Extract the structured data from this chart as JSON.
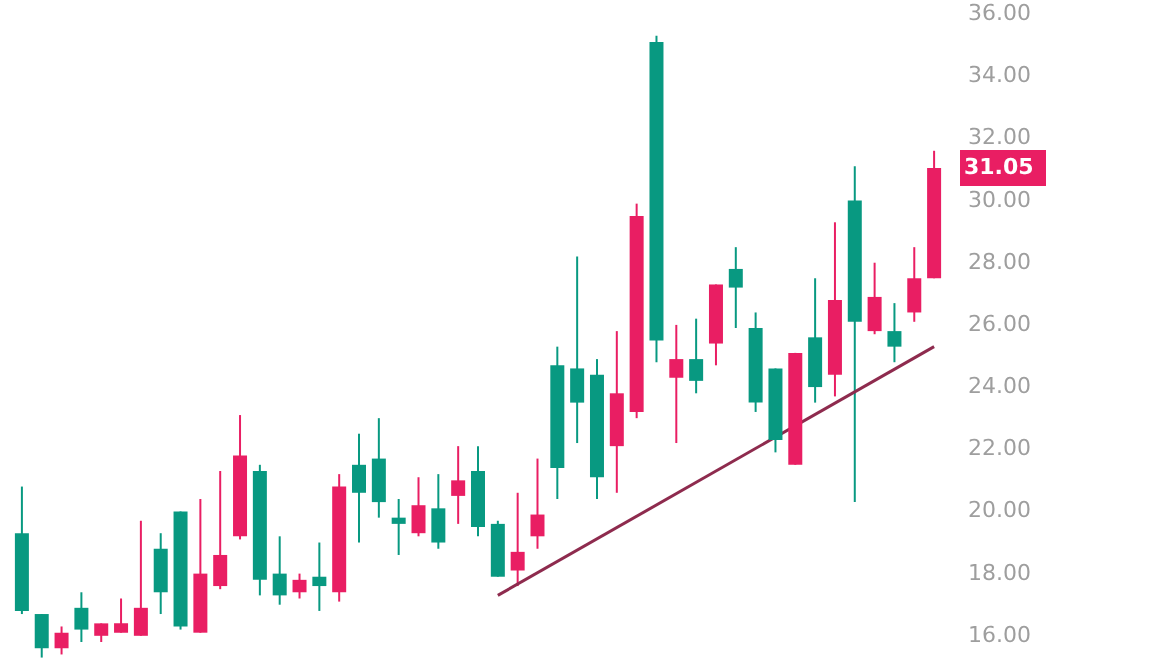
{
  "chart_data": {
    "type": "candlestick",
    "categories": [
      null,
      null,
      null,
      null,
      null,
      null,
      null,
      null,
      null,
      null,
      null,
      null,
      null,
      null,
      null,
      null,
      null,
      null,
      null,
      null,
      null,
      null,
      null,
      null,
      null,
      null,
      null,
      null,
      null,
      null,
      null,
      null,
      null,
      null,
      null,
      null,
      null,
      null,
      null,
      null,
      null,
      null,
      null,
      null,
      null,
      null,
      null
    ],
    "ohlc": [
      [
        19.3,
        20.8,
        16.7,
        16.8
      ],
      [
        16.7,
        16.7,
        15.3,
        15.6
      ],
      [
        15.6,
        16.3,
        15.4,
        16.1
      ],
      [
        16.9,
        17.4,
        15.8,
        16.2
      ],
      [
        16.0,
        16.4,
        15.8,
        16.4
      ],
      [
        16.1,
        17.2,
        16.1,
        16.4
      ],
      [
        16.0,
        19.7,
        16.0,
        16.9
      ],
      [
        18.8,
        19.3,
        16.7,
        17.4
      ],
      [
        20.0,
        20.0,
        16.2,
        16.3
      ],
      [
        16.1,
        20.4,
        16.1,
        18.0
      ],
      [
        17.6,
        21.3,
        17.5,
        18.6
      ],
      [
        19.2,
        23.1,
        19.1,
        21.8
      ],
      [
        21.3,
        21.5,
        17.3,
        17.8
      ],
      [
        18.0,
        19.2,
        17.0,
        17.3
      ],
      [
        17.4,
        18.0,
        17.2,
        17.8
      ],
      [
        17.9,
        19.0,
        16.8,
        17.6
      ],
      [
        17.4,
        21.2,
        17.1,
        20.8
      ],
      [
        21.5,
        22.5,
        19.0,
        20.6
      ],
      [
        21.7,
        23.0,
        19.8,
        20.3
      ],
      [
        19.8,
        20.4,
        18.6,
        19.6
      ],
      [
        19.3,
        21.1,
        19.2,
        20.2
      ],
      [
        20.1,
        21.2,
        18.8,
        19.0
      ],
      [
        20.5,
        22.1,
        19.6,
        21.0
      ],
      [
        21.3,
        22.1,
        19.2,
        19.5
      ],
      [
        19.6,
        19.7,
        17.9,
        17.9
      ],
      [
        18.1,
        20.6,
        17.6,
        18.7
      ],
      [
        19.2,
        21.7,
        18.8,
        19.9
      ],
      [
        24.7,
        25.3,
        20.4,
        21.4
      ],
      [
        24.6,
        28.2,
        22.2,
        23.5
      ],
      [
        24.4,
        24.9,
        20.4,
        21.1
      ],
      [
        22.1,
        25.8,
        20.6,
        23.8
      ],
      [
        23.2,
        29.9,
        23.0,
        29.5
      ],
      [
        35.1,
        35.3,
        24.8,
        25.5
      ],
      [
        24.3,
        26.0,
        22.2,
        24.9
      ],
      [
        24.9,
        26.2,
        23.8,
        24.2
      ],
      [
        25.4,
        27.3,
        24.7,
        27.3
      ],
      [
        27.8,
        28.5,
        25.9,
        27.2
      ],
      [
        25.9,
        26.4,
        23.2,
        23.5
      ],
      [
        24.6,
        24.6,
        21.9,
        22.3
      ],
      [
        21.5,
        25.1,
        21.5,
        25.1
      ],
      [
        25.6,
        27.5,
        23.5,
        24.0
      ],
      [
        24.4,
        29.3,
        23.7,
        26.8
      ],
      [
        30.0,
        31.1,
        20.3,
        26.1
      ],
      [
        25.8,
        28.0,
        25.7,
        26.9
      ],
      [
        25.8,
        26.7,
        24.8,
        25.3
      ],
      [
        26.4,
        28.5,
        26.1,
        27.5
      ],
      [
        27.5,
        31.6,
        27.5,
        31.05
      ]
    ],
    "colors": [
      "#089981",
      "#089981",
      "#e91e63",
      "#089981",
      "#e91e63",
      "#e91e63",
      "#e91e63",
      "#089981",
      "#089981",
      "#e91e63",
      "#e91e63",
      "#e91e63",
      "#089981",
      "#089981",
      "#e91e63",
      "#089981",
      "#e91e63",
      "#089981",
      "#089981",
      "#089981",
      "#e91e63",
      "#089981",
      "#e91e63",
      "#089981",
      "#089981",
      "#e91e63",
      "#e91e63",
      "#089981",
      "#089981",
      "#089981",
      "#e91e63",
      "#e91e63",
      "#089981",
      "#e91e63",
      "#089981",
      "#e91e63",
      "#089981",
      "#089981",
      "#089981",
      "#e91e63",
      "#089981",
      "#e91e63",
      "#089981",
      "#e91e63",
      "#089981",
      "#e91e63",
      "#e91e63"
    ],
    "series": [
      {
        "type": "line",
        "values": [
          null,
          null,
          null,
          null,
          null,
          null,
          null,
          null,
          null,
          null,
          null,
          null,
          null,
          null,
          null,
          null,
          null,
          null,
          null,
          null,
          null,
          null,
          null,
          null,
          17.3,
          null,
          null,
          null,
          null,
          null,
          null,
          null,
          null,
          null,
          null,
          null,
          null,
          null,
          null,
          null,
          null,
          null,
          null,
          null,
          null,
          null,
          25.3
        ],
        "color": "#8e2b4e"
      }
    ],
    "annotations": [
      "31.05"
    ],
    "ylim": [
      14.9,
      36.45
    ],
    "yticks": [
      {
        "value": 16,
        "label": "16.00"
      },
      {
        "value": 18,
        "label": "18.00"
      },
      {
        "value": 20,
        "label": "20.00"
      },
      {
        "value": 22,
        "label": "22.00"
      },
      {
        "value": 24,
        "label": "24.00"
      },
      {
        "value": 26,
        "label": "26.00"
      },
      {
        "value": 28,
        "label": "28.00"
      },
      {
        "value": 30,
        "label": "30.00"
      },
      {
        "value": 32,
        "label": "32.00"
      },
      {
        "value": 34,
        "label": "34.00"
      },
      {
        "value": 36,
        "label": "36.00"
      }
    ],
    "tick_labels": "y"
  }
}
